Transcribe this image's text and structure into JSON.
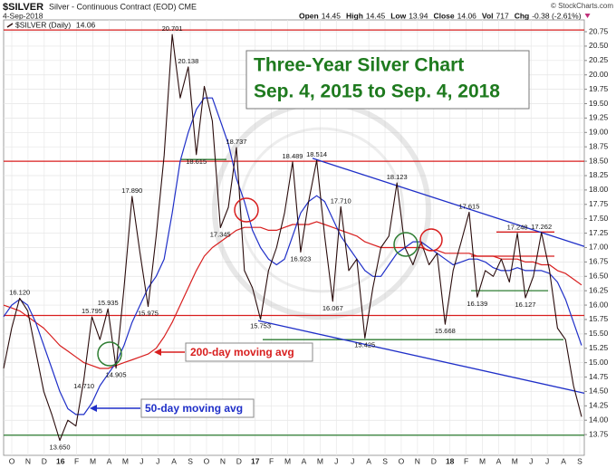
{
  "header": {
    "symbol": "$SILVER",
    "description": "Silver - Continuous Contract (EOD) CME",
    "date": "4-Sep-2018",
    "credit": "© StockCharts.com",
    "quote": [
      {
        "label": "Open",
        "value": 14.45
      },
      {
        "label": "High",
        "value": 14.45
      },
      {
        "label": "Low",
        "value": 13.94
      },
      {
        "label": "Close",
        "value": 14.06
      },
      {
        "label": "Vol",
        "value": 717
      },
      {
        "label": "Chg",
        "value": "-0.38 (-2.61%)"
      }
    ]
  },
  "chart_data": {
    "type": "line",
    "title": "Three-Year Silver Chart",
    "subtitle": "Sep. 4, 2015 to Sep. 4, 2018",
    "xticks": [
      "O",
      "N",
      "D",
      "16",
      "F",
      "M",
      "A",
      "M",
      "J",
      "J",
      "A",
      "S",
      "O",
      "N",
      "D",
      "17",
      "F",
      "M",
      "A",
      "M",
      "J",
      "J",
      "A",
      "S",
      "O",
      "N",
      "D",
      "18",
      "F",
      "M",
      "A",
      "M",
      "J",
      "J",
      "A",
      "S"
    ],
    "ylim": [
      13.39,
      20.955
    ],
    "yticks": [
      13.75,
      {
        "value": 14,
        "label": "14.00"
      },
      14.25,
      {
        "value": 14.5,
        "label": "14.50"
      },
      14.75,
      {
        "value": 15,
        "label": "15.00"
      },
      15.25,
      {
        "value": 15.5,
        "label": "15.50"
      },
      15.75,
      {
        "value": 16,
        "label": "16.00"
      },
      16.25,
      {
        "value": 16.5,
        "label": "16.50"
      },
      16.75,
      {
        "value": 17,
        "label": "17.00"
      },
      17.25,
      {
        "value": 17.5,
        "label": "17.50"
      },
      17.75,
      {
        "value": 18,
        "label": "18.00"
      },
      18.25,
      {
        "value": 18.5,
        "label": "18.50"
      },
      18.75,
      {
        "value": 19,
        "label": "19.00"
      },
      19.25,
      {
        "value": 19.5,
        "label": "19.50"
      },
      19.75,
      {
        "value": 20,
        "label": "20.00"
      },
      20.25,
      {
        "value": 20.5,
        "label": "20.50"
      },
      20.75
    ],
    "grid": true,
    "series": [
      {
        "name": "$SILVER (Daily)",
        "color": "#2a0c0c",
        "values": [
          14.9,
          15.6,
          16.12,
          15.9,
          15.2,
          14.5,
          14.1,
          13.65,
          14.0,
          13.9,
          14.71,
          15.795,
          15.4,
          15.935,
          14.905,
          16.3,
          17.89,
          16.9,
          15.975,
          17.2,
          18.6,
          20.701,
          19.6,
          20.138,
          18.615,
          19.8,
          19.2,
          17.345,
          17.7,
          18.737,
          16.6,
          16.3,
          15.753,
          16.6,
          17.0,
          17.6,
          18.489,
          16.923,
          17.8,
          18.514,
          17.2,
          16.067,
          17.71,
          16.6,
          16.8,
          15.425,
          16.3,
          17.0,
          17.2,
          18.123,
          17.0,
          16.7,
          17.1,
          16.7,
          16.9,
          15.668,
          16.6,
          17.1,
          17.615,
          16.139,
          16.6,
          16.5,
          16.8,
          16.4,
          17.248,
          16.127,
          16.5,
          17.262,
          16.6,
          15.6,
          15.4,
          14.6,
          14.06
        ],
        "value_labels": [
          null,
          null,
          "16.120",
          null,
          null,
          null,
          null,
          "13.650",
          null,
          null,
          "14.710",
          "15.795",
          null,
          "15.935",
          "14.905",
          null,
          "17.890",
          null,
          "15.975",
          null,
          null,
          "20.701",
          null,
          "20.138",
          "18.615",
          null,
          null,
          "17.345",
          null,
          "18.737",
          null,
          null,
          "15.753",
          null,
          null,
          null,
          "18.489",
          "16.923",
          null,
          "18.514",
          null,
          "16.067",
          "17.710",
          null,
          null,
          "15.425",
          null,
          null,
          null,
          "18.123",
          null,
          null,
          null,
          null,
          null,
          "15.668",
          null,
          null,
          "17.615",
          "16.139",
          null,
          null,
          null,
          null,
          "17.248",
          "16.127",
          null,
          "17.262",
          null,
          null,
          null,
          null,
          null
        ]
      },
      {
        "name": "50-day moving avg",
        "color": "#1f2fc8",
        "values": [
          15.8,
          16.0,
          16.1,
          16.0,
          15.7,
          15.3,
          14.9,
          14.5,
          14.2,
          14.1,
          14.1,
          14.3,
          14.6,
          14.8,
          15.0,
          15.3,
          15.7,
          16.0,
          16.3,
          16.5,
          16.8,
          17.6,
          18.5,
          19.0,
          19.4,
          19.6,
          19.6,
          19.2,
          18.8,
          18.2,
          17.8,
          17.3,
          17.0,
          16.8,
          16.7,
          16.8,
          17.2,
          17.6,
          17.8,
          17.9,
          17.8,
          17.5,
          17.2,
          17.0,
          16.8,
          16.6,
          16.5,
          16.5,
          16.7,
          16.9,
          17.0,
          17.1,
          17.1,
          17.0,
          16.9,
          16.8,
          16.7,
          16.75,
          16.8,
          16.8,
          16.75,
          16.65,
          16.6,
          16.6,
          16.65,
          16.6,
          16.6,
          16.6,
          16.55,
          16.4,
          16.1,
          15.7,
          15.3
        ]
      },
      {
        "name": "200-day moving avg",
        "color": "#d81e1e",
        "values": [
          16.0,
          15.95,
          15.9,
          15.8,
          15.7,
          15.6,
          15.45,
          15.3,
          15.2,
          15.1,
          15.0,
          14.95,
          14.9,
          14.9,
          14.95,
          15.0,
          15.05,
          15.1,
          15.15,
          15.25,
          15.45,
          15.7,
          16.0,
          16.3,
          16.6,
          16.85,
          17.0,
          17.1,
          17.2,
          17.3,
          17.35,
          17.35,
          17.35,
          17.3,
          17.3,
          17.35,
          17.4,
          17.4,
          17.4,
          17.45,
          17.4,
          17.35,
          17.3,
          17.25,
          17.2,
          17.1,
          17.05,
          17.0,
          17.0,
          17.0,
          17.0,
          17.0,
          17.0,
          16.95,
          16.95,
          16.9,
          16.9,
          16.9,
          16.9,
          16.85,
          16.85,
          16.85,
          16.8,
          16.8,
          16.8,
          16.75,
          16.75,
          16.7,
          16.7,
          16.6,
          16.55,
          16.45,
          16.35
        ]
      }
    ],
    "levels": [
      {
        "value": 20.78,
        "color": "#d81e1e"
      },
      {
        "value": 18.5,
        "color": "#d81e1e"
      },
      {
        "value": 15.82,
        "color": "#d81e1e"
      },
      {
        "value": 13.74,
        "color": "#2e7d32"
      },
      {
        "value": 15.4,
        "color": "#2e7d32"
      },
      {
        "value": 16.25,
        "color": "#2e7d32"
      },
      {
        "value": 16.85,
        "color": "#d81e1e"
      },
      {
        "value": 17.27,
        "color": "#d81e1e"
      },
      {
        "value": 18.53,
        "color": "#2e7d32"
      }
    ],
    "trendlines": [
      {
        "color": "#1f2fc8",
        "values": [
          18.55,
          17.02
        ]
      },
      {
        "color": "#1f2fc8",
        "values": [
          15.73,
          14.47
        ]
      }
    ]
  }
}
